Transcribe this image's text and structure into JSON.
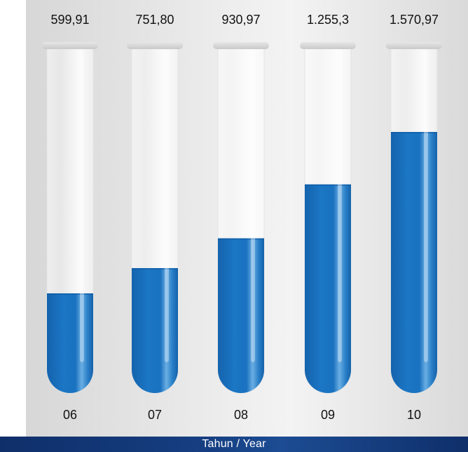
{
  "chart_data": {
    "type": "bar",
    "categories": [
      "06",
      "07",
      "08",
      "09",
      "10"
    ],
    "values": [
      599.91,
      751.8,
      930.97,
      1255.3,
      1570.97
    ],
    "value_labels": [
      "599,91",
      "751,80",
      "930,97",
      "1.255,3",
      "1.570,97"
    ],
    "xlabel": "Tahun / Year",
    "colors": {
      "liquid": "#1a73c0",
      "liquid_light": "#5fa6df",
      "tube_glass": "#f4f4f4",
      "footer": "#163f82"
    }
  }
}
